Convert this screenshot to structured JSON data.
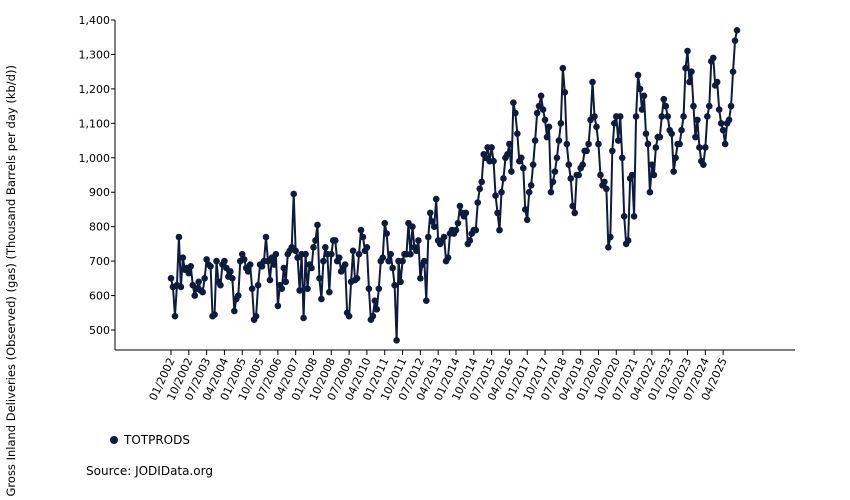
{
  "chart_data": {
    "type": "line",
    "title": "",
    "ylabel": "n / Gross Inland Deliveries (Observed) (gas) (Thousand Barrels per day (kb/d))",
    "xlabel": "",
    "ylim": [
      460,
      1400
    ],
    "yticks": [
      500,
      600,
      700,
      800,
      900,
      1000,
      1100,
      1200,
      1300,
      1400
    ],
    "ytick_labels": [
      "500",
      "600",
      "700",
      "800",
      "900",
      "1,000",
      "1,100",
      "1,200",
      "1,300",
      "1,400"
    ],
    "x_start": "01/2002",
    "xtick_labels": [
      "01/2002",
      "10/2002",
      "07/2003",
      "04/2004",
      "01/2005",
      "10/2005",
      "07/2006",
      "04/2007",
      "01/2008",
      "10/2008",
      "07/2009",
      "04/2010",
      "01/2011",
      "10/2011",
      "07/2012",
      "04/2013",
      "01/2014",
      "10/2014",
      "07/2015",
      "04/2016",
      "01/2017",
      "10/2017",
      "07/2018",
      "04/2019",
      "01/2020",
      "10/2020",
      "07/2021",
      "04/2022",
      "01/2023",
      "10/2023",
      "07/2024",
      "04/2025"
    ],
    "grid": false,
    "legend_position": "bottom-left",
    "color": "#0d1b3e",
    "series": [
      {
        "name": "TOTPRODS",
        "values": [
          650,
          625,
          540,
          630,
          770,
          625,
          710,
          675,
          680,
          665,
          685,
          630,
          600,
          620,
          640,
          615,
          610,
          650,
          705,
          690,
          685,
          540,
          545,
          700,
          640,
          630,
          690,
          700,
          680,
          655,
          670,
          650,
          555,
          590,
          600,
          700,
          720,
          705,
          680,
          670,
          690,
          620,
          530,
          540,
          630,
          690,
          685,
          700,
          770,
          700,
          645,
          710,
          690,
          720,
          570,
          630,
          620,
          680,
          640,
          720,
          730,
          740,
          895,
          730,
          710,
          615,
          720,
          535,
          720,
          620,
          690,
          680,
          740,
          760,
          805,
          650,
          590,
          700,
          740,
          720,
          610,
          720,
          760,
          760,
          700,
          710,
          670,
          680,
          690,
          550,
          540,
          640,
          730,
          645,
          650,
          720,
          790,
          770,
          730,
          740,
          620,
          530,
          540,
          585,
          560,
          620,
          700,
          710,
          810,
          780,
          700,
          720,
          680,
          630,
          470,
          700,
          640,
          700,
          720,
          720,
          810,
          720,
          800,
          740,
          730,
          760,
          650,
          690,
          700,
          585,
          770,
          840,
          815,
          800,
          880,
          760,
          750,
          760,
          770,
          700,
          710,
          780,
          790,
          780,
          790,
          810,
          860,
          840,
          830,
          840,
          750,
          760,
          780,
          790,
          790,
          870,
          910,
          930,
          1010,
          1000,
          1030,
          990,
          1030,
          990,
          890,
          840,
          790,
          900,
          940,
          1000,
          1010,
          1040,
          960,
          1160,
          1130,
          1070,
          990,
          1000,
          970,
          850,
          820,
          900,
          920,
          980,
          1050,
          1130,
          1150,
          1180,
          1140,
          1110,
          1060,
          1090,
          900,
          930,
          960,
          1000,
          1050,
          1100,
          1260,
          1190,
          1040,
          980,
          940,
          860,
          840,
          950,
          950,
          970,
          980,
          1020,
          1020,
          1040,
          1110,
          1220,
          1120,
          1090,
          1040,
          950,
          920,
          930,
          910,
          740,
          770,
          1020,
          1100,
          1120,
          1050,
          1120,
          1000,
          830,
          750,
          760,
          940,
          950,
          830,
          1120,
          1240,
          1200,
          1140,
          1180,
          1070,
          1040,
          900,
          980,
          950,
          1030,
          1060,
          1060,
          1120,
          1170,
          1150,
          1120,
          1080,
          1070,
          960,
          1000,
          1040,
          1040,
          1080,
          1120,
          1260,
          1310,
          1220,
          1250,
          1150,
          1060,
          1110,
          1030,
          990,
          980,
          1030,
          1120,
          1150,
          1280,
          1290,
          1210,
          1220,
          1140,
          1100,
          1080,
          1040,
          1100,
          1110,
          1150,
          1250,
          1340,
          1370
        ]
      }
    ],
    "legend": [
      "TOTPRODS"
    ],
    "source": "Source: JODIData.org"
  }
}
